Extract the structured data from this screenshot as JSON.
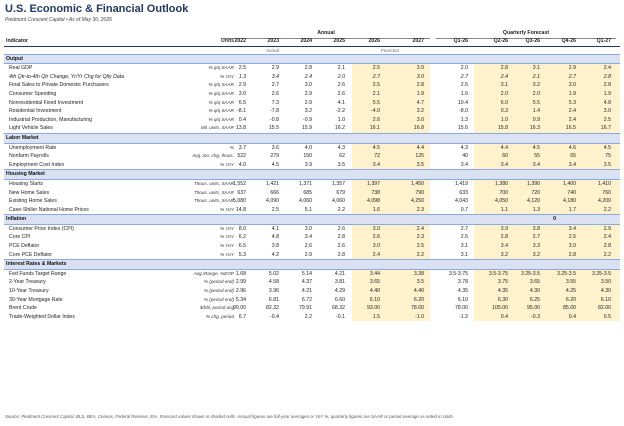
{
  "title": "U.S. Economic & Financial Outlook",
  "subtitle": "Piedmont Crescent Capital  •  As of May 30, 2026",
  "header": {
    "annual_label": "Annual",
    "quarterly_label": "Quarterly Forecast",
    "indicator_label": "Indicator",
    "units_label": "Units",
    "years": [
      "2022",
      "2023",
      "2024",
      "2025",
      "2026",
      "2027"
    ],
    "quarters": [
      "Q1-26",
      "Q2-26",
      "Q3-26",
      "Q4-26",
      "Q1-27"
    ],
    "actual_label": "Actual",
    "forecast_label": "Forecast"
  },
  "sections": [
    {
      "name": "Output",
      "rows": [
        {
          "label": "Real GDP",
          "units": "% q/q SAAR",
          "a": [
            "2.5",
            "2.9",
            "2.8",
            "2.1"
          ],
          "f": [
            "2.5",
            "3.0"
          ],
          "q": [
            "2.0",
            "2.8",
            "3.1",
            "2.9",
            "2.4"
          ]
        },
        {
          "label": "4th Qtr-to-4th Qtr Change, Yr/Yr Chg for Qtly Data",
          "units": "% YoY",
          "a": [
            "1.3",
            "3.4",
            "2.4",
            "2.0"
          ],
          "f": [
            "2.7",
            "3.0"
          ],
          "q": [
            "2.7",
            "2.4",
            "2.1",
            "2.7",
            "2.8"
          ],
          "sub": true
        },
        {
          "label": "Final Sales to Private Domestic Purchasers",
          "units": "% q/q SAAR",
          "a": [
            "2.9",
            "2.7",
            "3.0",
            "2.6"
          ],
          "f": [
            "2.5",
            "2.8"
          ],
          "q": [
            "2.5",
            "3.1",
            "3.2",
            "3.0",
            "2.8"
          ]
        },
        {
          "label": "Consumer Spending",
          "units": "% q/q SAAR",
          "a": [
            "3.0",
            "2.6",
            "2.9",
            "2.6"
          ],
          "f": [
            "2.1",
            "1.9"
          ],
          "q": [
            "1.6",
            "2.0",
            "2.0",
            "1.9",
            "1.9"
          ]
        },
        {
          "label": "Nonresidential Fixed Investment",
          "units": "% q/q SAAR",
          "a": [
            "6.5",
            "7.3",
            "2.9",
            "4.1"
          ],
          "f": [
            "5.5",
            "4.7"
          ],
          "q": [
            "10.4",
            "6.0",
            "5.5",
            "5.3",
            "4.8"
          ]
        },
        {
          "label": "Residential Investment",
          "units": "% q/q SAAR",
          "a": [
            "-8.1",
            "-7.8",
            "3.2",
            "-2.2"
          ],
          "f": [
            "-4.0",
            "3.2"
          ],
          "q": [
            "-8.0",
            "0.3",
            "1.4",
            "2.4",
            "3.0"
          ]
        },
        {
          "label": "Industrial Production, Manufacturing",
          "units": "% q/q SAAR",
          "a": [
            "0.4",
            "-0.8",
            "-0.9",
            "1.0"
          ],
          "f": [
            "2.6",
            "3.0"
          ],
          "q": [
            "1.3",
            "1.0",
            "0.9",
            "2.4",
            "2.5"
          ]
        },
        {
          "label": "Light Vehicle Sales",
          "units": "Mil. units, SAAR",
          "a": [
            "13.8",
            "15.5",
            "15.9",
            "16.2"
          ],
          "f": [
            "16.1",
            "16.8"
          ],
          "q": [
            "15.6",
            "15.8",
            "16.3",
            "16.5",
            "16.7"
          ]
        }
      ]
    },
    {
      "name": "Labor Market",
      "rows": [
        {
          "label": "Unemployment Rate",
          "units": "%",
          "a": [
            "3.7",
            "3.6",
            "4.0",
            "4.3"
          ],
          "f": [
            "4.5",
            "4.4"
          ],
          "q": [
            "4.3",
            "4.4",
            "4.5",
            "4.6",
            "4.5"
          ]
        },
        {
          "label": "Nonfarm Payrolls",
          "units": "Avg. mo. chg, thous.",
          "a": [
            "522",
            "279",
            "150",
            "62"
          ],
          "f": [
            "72",
            "125"
          ],
          "q": [
            "40",
            "60",
            "55",
            "65",
            "75"
          ]
        },
        {
          "label": "Employment Cost Index",
          "units": "% YoY",
          "a": [
            "4.0",
            "4.5",
            "3.9",
            "3.5"
          ],
          "f": [
            "3.4",
            "3.5"
          ],
          "q": [
            "3.4",
            "3.4",
            "3.4",
            "3.4",
            "3.5"
          ]
        }
      ]
    },
    {
      "name": "Housing Market",
      "rows": [
        {
          "label": "Housing Starts",
          "units": "Thous. units, SAAR",
          "a": [
            "1,552",
            "1,421",
            "1,371",
            "1,357"
          ],
          "f": [
            "1,397",
            "1,450"
          ],
          "q": [
            "1,419",
            "1,380",
            "1,390",
            "1,400",
            "1,410"
          ]
        },
        {
          "label": "New Home Sales",
          "units": "Thous. units, SAAR",
          "a": [
            "637",
            "666",
            "685",
            "679"
          ],
          "f": [
            "738",
            "790"
          ],
          "q": [
            "633",
            "700",
            "720",
            "740",
            "760"
          ]
        },
        {
          "label": "Existing Home Sales",
          "units": "Thous. units, SAAR",
          "a": [
            "5,080",
            "4,090",
            "4,060",
            "4,060"
          ],
          "f": [
            "4,098",
            "4,250"
          ],
          "q": [
            "4,043",
            "4,050",
            "4,120",
            "4,180",
            "4,200"
          ]
        },
        {
          "label": "Case-Shiller National Home Prices",
          "units": "% YoY",
          "a": [
            "14.8",
            "2.5",
            "5.1",
            "2.2"
          ],
          "f": [
            "1.6",
            "2.3"
          ],
          "q": [
            "0.7",
            "1.1",
            "1.3",
            "1.7",
            "2.2"
          ]
        }
      ]
    },
    {
      "name": "Inflation",
      "qnote": "0",
      "rows": [
        {
          "label": "Consumer Price Index (CPI)",
          "units": "% YoY",
          "a": [
            "8.0",
            "4.1",
            "3.0",
            "2.6"
          ],
          "f": [
            "3.0",
            "2.4"
          ],
          "q": [
            "2.7",
            "3.9",
            "3.8",
            "3.4",
            "2.9"
          ]
        },
        {
          "label": "Core CPI",
          "units": "% YoY",
          "a": [
            "6.2",
            "4.8",
            "3.4",
            "2.8"
          ],
          "f": [
            "2.6",
            "2.3"
          ],
          "q": [
            "2.5",
            "2.8",
            "2.7",
            "2.5",
            "2.4"
          ]
        },
        {
          "label": "PCE Deflator",
          "units": "% YoY",
          "a": [
            "6.5",
            "3.8",
            "2.6",
            "2.6"
          ],
          "f": [
            "3.0",
            "2.5"
          ],
          "q": [
            "3.1",
            "3.4",
            "3.3",
            "3.0",
            "2.8"
          ]
        },
        {
          "label": "Core PCE Deflator",
          "units": "% YoY",
          "a": [
            "5.3",
            "4.2",
            "2.9",
            "2.8"
          ],
          "f": [
            "2.4",
            "2.2"
          ],
          "q": [
            "3.1",
            "3.2",
            "3.2",
            "2.8",
            "2.2"
          ]
        }
      ]
    },
    {
      "name": "Interest Rates & Markets",
      "rows": [
        {
          "label": "Fed Funds Target Range",
          "units": "Avg./Range, %EOP",
          "a": [
            "1.68",
            "5.02",
            "5.14",
            "4.21"
          ],
          "f": [
            "3.44",
            "3.38"
          ],
          "q": [
            "3.5-3.75",
            "3.5-3.75",
            "3.25-3.5",
            "3.25-3.5",
            "3.25-3.5"
          ]
        },
        {
          "label": "2-Year Treasury",
          "units": "% (period end)",
          "a": [
            "2.99",
            "4.58",
            "4.37",
            "3.81"
          ],
          "f": [
            "3.65",
            "3.5"
          ],
          "q": [
            "3.78",
            "3.75",
            "3.65",
            "3.55",
            "3.50"
          ]
        },
        {
          "label": "10-Year Treasury",
          "units": "% (period end)",
          "a": [
            "2.96",
            "3.96",
            "4.21",
            "4.29"
          ],
          "f": [
            "4.40",
            "4.40"
          ],
          "q": [
            "4.35",
            "4.35",
            "4.30",
            "4.25",
            "4.30"
          ]
        },
        {
          "label": "30-Year Mortgage Rate",
          "units": "% (period end)",
          "a": [
            "5.34",
            "6.81",
            "6.72",
            "6.60"
          ],
          "f": [
            "6.10",
            "6.20"
          ],
          "q": [
            "6.10",
            "6.30",
            "6.25",
            "6.20",
            "6.10"
          ]
        },
        {
          "label": "Brent Crude",
          "units": "$/bbl, period avg",
          "a": [
            "99.00",
            "82.32",
            "79.91",
            "68.32"
          ],
          "f": [
            "93.00",
            "78.00"
          ],
          "q": [
            "78.00",
            "105.00",
            "95.00",
            "85.00",
            "82.00"
          ]
        },
        {
          "label": "Trade-Weighted Dollar Index",
          "units": "% chg, period",
          "a": [
            "6.7",
            "-0.4",
            "2.2",
            "-0.1"
          ],
          "f": [
            "1.5",
            "-1.0"
          ],
          "q": [
            "-1.2",
            "0.4",
            "-0.3",
            "0.4",
            "0.5"
          ]
        }
      ]
    }
  ],
  "footnote": "Source: Piedmont Crescent Capital, BLS, BEA, Census, Federal Reserve, EIA. Forecast values shown in shaded cells. Annual figures are full-year averages or YoY %; quarterly figures are SAAR or period-average as noted in Units."
}
